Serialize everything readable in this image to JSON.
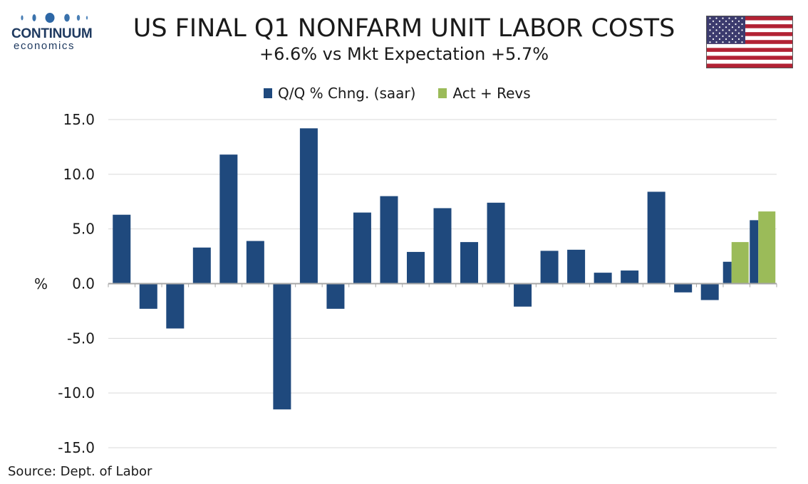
{
  "header": {
    "title": "US FINAL Q1 NONFARM UNIT LABOR COSTS",
    "subtitle": "+6.6% vs Mkt Expectation +5.7%"
  },
  "logo": {
    "name": "CONTINUUM",
    "sub": "economics",
    "color": "#1f3a60"
  },
  "source": "Source: Dept. of Labor",
  "colors": {
    "primary": "#1f497d",
    "secondary": "#9bbb59",
    "grid": "#d9d9d9",
    "axis": "#a6a6a6"
  },
  "chart_data": {
    "type": "bar",
    "title": "US FINAL Q1 NONFARM UNIT LABOR COSTS",
    "subtitle": "+6.6% vs Mkt Expectation +5.7%",
    "ylabel": "%",
    "xlabel": "",
    "ylim": [
      -15,
      15
    ],
    "yticks": [
      "15.0",
      "10.0",
      "5.0",
      "0.0",
      "-5.0",
      "-10.0",
      "-15.0"
    ],
    "grid": true,
    "legend": "top-center",
    "series": [
      {
        "name": "Q/Q % Chng. (saar)",
        "color": "#1f497d",
        "values": [
          6.3,
          -2.3,
          -4.1,
          3.3,
          11.8,
          3.9,
          -11.5,
          14.2,
          -2.3,
          6.5,
          8.0,
          2.9,
          6.9,
          3.8,
          7.4,
          -2.1,
          3.0,
          3.1,
          1.0,
          1.2,
          8.4,
          -0.8,
          -1.5,
          2.0,
          5.8
        ]
      },
      {
        "name": "Act + Revs",
        "color": "#9bbb59",
        "values": [
          null,
          null,
          null,
          null,
          null,
          null,
          null,
          null,
          null,
          null,
          null,
          null,
          null,
          null,
          null,
          null,
          null,
          null,
          null,
          null,
          null,
          null,
          null,
          3.8,
          6.6
        ]
      }
    ]
  }
}
